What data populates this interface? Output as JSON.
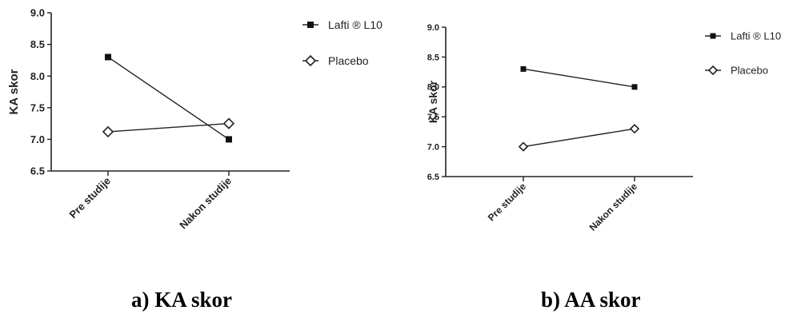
{
  "chart_data": [
    {
      "type": "line",
      "panel": "a",
      "caption": "a) KA skor",
      "ylabel": "KA skor",
      "xlabel": "",
      "categories": [
        "Pre studije",
        "Nakon studije"
      ],
      "ylim": [
        6.5,
        9.0
      ],
      "yticks": [
        "6.5",
        "7.0",
        "7.5",
        "8.0",
        "8.5",
        "9.0"
      ],
      "legend_position": "right",
      "grid": false,
      "series": [
        {
          "name": "Lafti ® L10",
          "marker": "square",
          "values": [
            8.3,
            7.0
          ]
        },
        {
          "name": "Placebo",
          "marker": "diamond-open",
          "values": [
            7.12,
            7.25
          ]
        }
      ]
    },
    {
      "type": "line",
      "panel": "b",
      "caption": "b) AA skor",
      "ylabel": "KA skor",
      "xlabel": "",
      "categories": [
        "Pre studije",
        "Nakon studije"
      ],
      "ylim": [
        6.5,
        9.0
      ],
      "yticks": [
        "6.5",
        "7.0",
        "7.5",
        "8.0",
        "8.5",
        "9.0"
      ],
      "legend_position": "right",
      "grid": false,
      "series": [
        {
          "name": "Lafti ® L10",
          "marker": "square",
          "values": [
            8.3,
            8.0
          ]
        },
        {
          "name": "Placebo",
          "marker": "diamond-open",
          "values": [
            7.0,
            7.3
          ]
        }
      ]
    }
  ],
  "colors": {
    "ink": "#222222",
    "marker_fill": "#111111",
    "background": "#ffffff"
  }
}
